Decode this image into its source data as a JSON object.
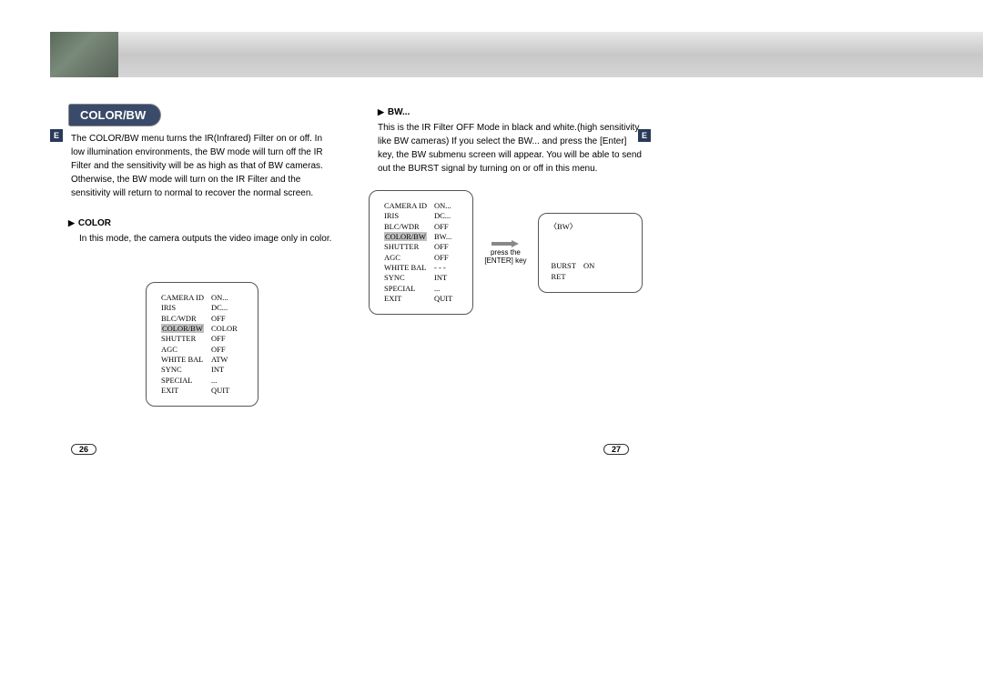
{
  "header": {
    "section_title": "COLOR/BW",
    "lang_tab": "E"
  },
  "left": {
    "intro": "The COLOR/BW menu turns the IR(Infrared) Filter on or off. In low illumination environments, the BW mode will turn off the IR Filter and the sensitivity will be as high as that of BW cameras. Otherwise, the BW mode will turn on the IR Filter and the sensitivity will return to normal to recover the normal screen.",
    "sub_title": "COLOR",
    "sub_text": "In this mode, the camera outputs the video image only in color.",
    "menu": {
      "rows": [
        [
          "CAMERA ID",
          "ON..."
        ],
        [
          "IRIS",
          "DC..."
        ],
        [
          "BLC/WDR",
          "OFF"
        ],
        [
          "COLOR/BW",
          "COLOR"
        ],
        [
          "SHUTTER",
          "OFF"
        ],
        [
          "AGC",
          "OFF"
        ],
        [
          "WHITE BAL",
          "ATW"
        ],
        [
          "SYNC",
          "INT"
        ],
        [
          "SPECIAL",
          "..."
        ],
        [
          "EXIT",
          "QUIT"
        ]
      ],
      "highlight_row": 3
    },
    "page_num": "26"
  },
  "right": {
    "sub_title": "BW...",
    "sub_text": "This is the IR Filter OFF Mode in black and white.(high sensitivity like BW cameras) If you select the BW... and press the [Enter] key, the BW submenu screen will appear. You will be able to send out the BURST signal by turning on or off in this menu.",
    "menu": {
      "rows": [
        [
          "CAMERA ID",
          "ON..."
        ],
        [
          "IRIS",
          "DC..."
        ],
        [
          "BLC/WDR",
          "OFF"
        ],
        [
          "COLOR/BW",
          "BW..."
        ],
        [
          "SHUTTER",
          "OFF"
        ],
        [
          "AGC",
          "OFF"
        ],
        [
          "WHITE BAL",
          "- - -"
        ],
        [
          "SYNC",
          "INT"
        ],
        [
          "SPECIAL",
          "..."
        ],
        [
          "EXIT",
          "QUIT"
        ]
      ],
      "highlight_row": 3
    },
    "arrow_label1": "press the",
    "arrow_label2": "[ENTER] key",
    "submenu": {
      "title": "〈BW〉",
      "rows": [
        [
          "BURST",
          "ON"
        ],
        [
          "RET",
          ""
        ]
      ],
      "highlight_row": 0
    },
    "page_num": "27"
  },
  "colors": {
    "section_bg": "#3a4a6a",
    "highlight": "#c0c0c0",
    "tab_bg": "#2a3a5a"
  }
}
